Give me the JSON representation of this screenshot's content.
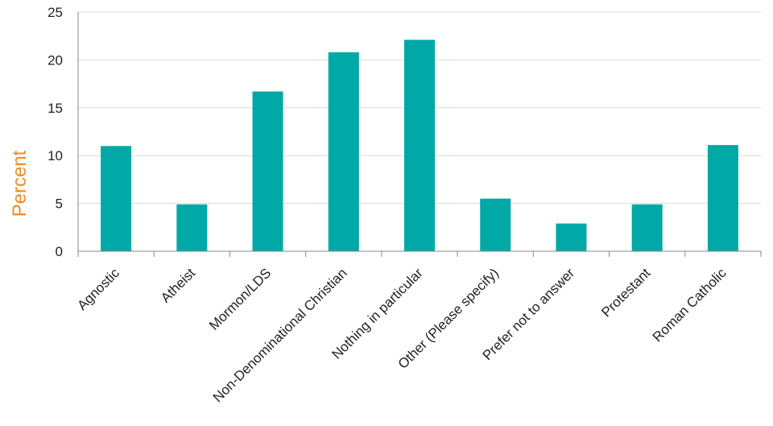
{
  "chart_data": {
    "type": "bar",
    "title": "",
    "xlabel": "",
    "ylabel": "Percent",
    "ylim": [
      0,
      25
    ],
    "yticks": [
      0,
      5,
      10,
      15,
      20,
      25
    ],
    "grid": true,
    "categories": [
      "Agnostic",
      "Atheist",
      "Mormon/LDS",
      "Non-Denominational Christian",
      "Nothing in particular",
      "Other (Please specify)",
      "Prefer not to answer",
      "Protestant",
      "Roman Catholic"
    ],
    "values": [
      11.0,
      4.9,
      16.7,
      20.8,
      22.1,
      5.5,
      2.9,
      4.9,
      11.1
    ],
    "colors": {
      "bar": "#00a9a5",
      "ylabel": "#f58a1f",
      "grid": "#d9d9d9",
      "axis": "#888888"
    }
  }
}
